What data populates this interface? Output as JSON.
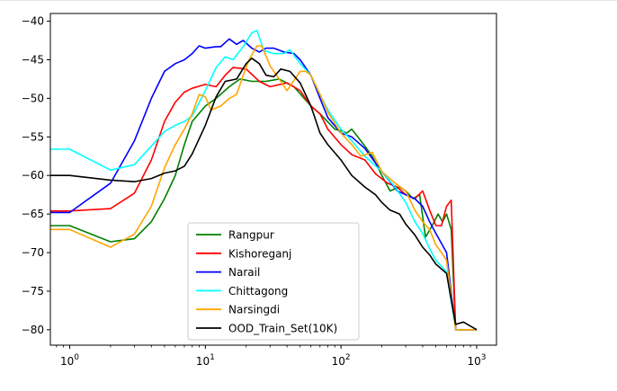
{
  "chart_data": {
    "type": "line",
    "title": "",
    "xlabel": "",
    "ylabel": "",
    "x_scale": "log",
    "xlim": [
      0.72,
      1400
    ],
    "ylim": [
      -82,
      -39
    ],
    "x_ticks": [
      {
        "value": 1,
        "base": "10",
        "exp": "0"
      },
      {
        "value": 10,
        "base": "10",
        "exp": "1"
      },
      {
        "value": 100,
        "base": "10",
        "exp": "2"
      },
      {
        "value": 1000,
        "base": "10",
        "exp": "3"
      }
    ],
    "y_ticks": [
      {
        "value": -40,
        "label": "−40"
      },
      {
        "value": -45,
        "label": "−45"
      },
      {
        "value": -50,
        "label": "−50"
      },
      {
        "value": -55,
        "label": "−55"
      },
      {
        "value": -60,
        "label": "−60"
      },
      {
        "value": -65,
        "label": "−65"
      },
      {
        "value": -70,
        "label": "−70"
      },
      {
        "value": -75,
        "label": "−75"
      },
      {
        "value": -80,
        "label": "−80"
      }
    ],
    "legend_position": "lower-center",
    "series": [
      {
        "name": "Rangpur",
        "color": "#008000",
        "points": [
          [
            0.72,
            -66.5
          ],
          [
            1,
            -66.5
          ],
          [
            2,
            -68.6
          ],
          [
            3,
            -68.2
          ],
          [
            4,
            -66
          ],
          [
            5,
            -63
          ],
          [
            6,
            -60
          ],
          [
            7,
            -56
          ],
          [
            8,
            -53
          ],
          [
            10,
            -51
          ],
          [
            12,
            -50
          ],
          [
            15,
            -48.5
          ],
          [
            18,
            -47.5
          ],
          [
            22,
            -47.8
          ],
          [
            28,
            -47.8
          ],
          [
            35,
            -47.5
          ],
          [
            45,
            -48.5
          ],
          [
            60,
            -51
          ],
          [
            70,
            -52
          ],
          [
            90,
            -54
          ],
          [
            100,
            -54.2
          ],
          [
            110,
            -54.5
          ],
          [
            120,
            -54
          ],
          [
            140,
            -55.5
          ],
          [
            170,
            -57.5
          ],
          [
            200,
            -60
          ],
          [
            230,
            -62
          ],
          [
            270,
            -61.5
          ],
          [
            300,
            -62
          ],
          [
            340,
            -63
          ],
          [
            380,
            -62.5
          ],
          [
            420,
            -68
          ],
          [
            470,
            -66.5
          ],
          [
            520,
            -65
          ],
          [
            560,
            -66
          ],
          [
            600,
            -65
          ],
          [
            650,
            -67
          ],
          [
            700,
            -80
          ],
          [
            800,
            -80
          ],
          [
            1000,
            -80
          ]
        ]
      },
      {
        "name": "Kishoreganj",
        "color": "#ff0000",
        "points": [
          [
            0.72,
            -64.6
          ],
          [
            1,
            -64.6
          ],
          [
            2,
            -64.3
          ],
          [
            3,
            -62.3
          ],
          [
            4,
            -58
          ],
          [
            5,
            -53
          ],
          [
            6,
            -50.5
          ],
          [
            7,
            -49.2
          ],
          [
            8,
            -48.7
          ],
          [
            10,
            -48.2
          ],
          [
            12,
            -48.5
          ],
          [
            14,
            -47
          ],
          [
            16,
            -46
          ],
          [
            20,
            -46.2
          ],
          [
            25,
            -47.8
          ],
          [
            30,
            -48.5
          ],
          [
            40,
            -48
          ],
          [
            50,
            -49
          ],
          [
            60,
            -51
          ],
          [
            70,
            -52
          ],
          [
            80,
            -54
          ],
          [
            100,
            -56
          ],
          [
            120,
            -57.3
          ],
          [
            150,
            -58
          ],
          [
            180,
            -59.8
          ],
          [
            220,
            -61
          ],
          [
            260,
            -61.5
          ],
          [
            300,
            -62.5
          ],
          [
            350,
            -63
          ],
          [
            400,
            -62
          ],
          [
            450,
            -64.5
          ],
          [
            500,
            -66.5
          ],
          [
            550,
            -66.5
          ],
          [
            600,
            -64
          ],
          [
            650,
            -63.2
          ],
          [
            700,
            -80
          ],
          [
            800,
            -80
          ],
          [
            1000,
            -80
          ]
        ]
      },
      {
        "name": "Narail",
        "color": "#0000ff",
        "points": [
          [
            0.72,
            -64.8
          ],
          [
            1,
            -64.8
          ],
          [
            2,
            -61
          ],
          [
            3,
            -55.5
          ],
          [
            4,
            -50
          ],
          [
            5,
            -46.5
          ],
          [
            6,
            -45.5
          ],
          [
            7,
            -45
          ],
          [
            8,
            -44.2
          ],
          [
            9,
            -43.2
          ],
          [
            10,
            -43.5
          ],
          [
            12,
            -43.3
          ],
          [
            13,
            -43.3
          ],
          [
            15,
            -42.3
          ],
          [
            17,
            -43
          ],
          [
            19,
            -42.5
          ],
          [
            22,
            -43.5
          ],
          [
            25,
            -44
          ],
          [
            28,
            -43.5
          ],
          [
            32,
            -43.5
          ],
          [
            38,
            -44
          ],
          [
            45,
            -44.2
          ],
          [
            50,
            -45
          ],
          [
            60,
            -47
          ],
          [
            70,
            -50
          ],
          [
            80,
            -52.5
          ],
          [
            100,
            -54.5
          ],
          [
            120,
            -55
          ],
          [
            150,
            -56.5
          ],
          [
            200,
            -59.5
          ],
          [
            260,
            -62
          ],
          [
            300,
            -62.5
          ],
          [
            350,
            -63
          ],
          [
            400,
            -64
          ],
          [
            450,
            -66
          ],
          [
            500,
            -67.5
          ],
          [
            600,
            -70
          ],
          [
            700,
            -80
          ],
          [
            800,
            -80
          ],
          [
            1000,
            -80
          ]
        ]
      },
      {
        "name": "Chittagong",
        "color": "#00ffff",
        "points": [
          [
            0.72,
            -56.6
          ],
          [
            1,
            -56.6
          ],
          [
            2,
            -59.3
          ],
          [
            3,
            -58.6
          ],
          [
            4,
            -56.2
          ],
          [
            5,
            -54.3
          ],
          [
            6,
            -53.5
          ],
          [
            7,
            -53
          ],
          [
            8,
            -52.3
          ],
          [
            10,
            -49
          ],
          [
            12,
            -46
          ],
          [
            14,
            -44.6
          ],
          [
            16,
            -45
          ],
          [
            19,
            -43.3
          ],
          [
            22,
            -41.5
          ],
          [
            24,
            -41.2
          ],
          [
            27,
            -43.8
          ],
          [
            32,
            -44.2
          ],
          [
            38,
            -44.2
          ],
          [
            42,
            -43.7
          ],
          [
            50,
            -45.5
          ],
          [
            60,
            -47
          ],
          [
            70,
            -49.5
          ],
          [
            80,
            -51.5
          ],
          [
            100,
            -54
          ],
          [
            120,
            -55.5
          ],
          [
            150,
            -57.5
          ],
          [
            200,
            -59.5
          ],
          [
            250,
            -61.5
          ],
          [
            300,
            -63.5
          ],
          [
            350,
            -66
          ],
          [
            400,
            -67.5
          ],
          [
            450,
            -69.5
          ],
          [
            500,
            -71
          ],
          [
            600,
            -72.5
          ],
          [
            700,
            -80
          ],
          [
            800,
            -80
          ],
          [
            1000,
            -80
          ]
        ]
      },
      {
        "name": "Narsingdi",
        "color": "#ffa500",
        "points": [
          [
            0.72,
            -67
          ],
          [
            1,
            -67
          ],
          [
            2,
            -69.3
          ],
          [
            3,
            -67.6
          ],
          [
            4,
            -64
          ],
          [
            5,
            -59
          ],
          [
            6,
            -56
          ],
          [
            7,
            -54
          ],
          [
            8,
            -52
          ],
          [
            9,
            -49.5
          ],
          [
            10,
            -49.8
          ],
          [
            11,
            -51.5
          ],
          [
            13,
            -51
          ],
          [
            15,
            -50
          ],
          [
            17,
            -49.5
          ],
          [
            19,
            -47
          ],
          [
            21,
            -45
          ],
          [
            24,
            -43.2
          ],
          [
            26,
            -43.2
          ],
          [
            28,
            -44.5
          ],
          [
            30,
            -45.8
          ],
          [
            35,
            -47.5
          ],
          [
            40,
            -49
          ],
          [
            50,
            -46.5
          ],
          [
            55,
            -46.5
          ],
          [
            60,
            -47
          ],
          [
            70,
            -49.5
          ],
          [
            80,
            -51.8
          ],
          [
            100,
            -54.5
          ],
          [
            120,
            -56
          ],
          [
            140,
            -57.5
          ],
          [
            170,
            -57
          ],
          [
            200,
            -59.5
          ],
          [
            250,
            -61
          ],
          [
            300,
            -62
          ],
          [
            350,
            -64.5
          ],
          [
            400,
            -66
          ],
          [
            450,
            -67
          ],
          [
            500,
            -69
          ],
          [
            550,
            -70
          ],
          [
            600,
            -71
          ],
          [
            700,
            -80
          ],
          [
            800,
            -80
          ],
          [
            1000,
            -80
          ]
        ]
      },
      {
        "name": "OOD_Train_Set(10K)",
        "color": "#000000",
        "points": [
          [
            0.72,
            -60
          ],
          [
            1,
            -60
          ],
          [
            2,
            -60.6
          ],
          [
            3,
            -60.8
          ],
          [
            4,
            -60.4
          ],
          [
            5,
            -59.7
          ],
          [
            6,
            -59.4
          ],
          [
            7,
            -58.8
          ],
          [
            8,
            -57.2
          ],
          [
            10,
            -53.5
          ],
          [
            12,
            -49.8
          ],
          [
            14,
            -47.8
          ],
          [
            17,
            -47.5
          ],
          [
            20,
            -45.5
          ],
          [
            22,
            -44.8
          ],
          [
            25,
            -45.5
          ],
          [
            28,
            -47
          ],
          [
            32,
            -47.2
          ],
          [
            36,
            -46.2
          ],
          [
            42,
            -46.5
          ],
          [
            50,
            -48
          ],
          [
            60,
            -51
          ],
          [
            70,
            -54.5
          ],
          [
            80,
            -56
          ],
          [
            100,
            -58
          ],
          [
            120,
            -60
          ],
          [
            150,
            -61.5
          ],
          [
            180,
            -62.5
          ],
          [
            200,
            -63.5
          ],
          [
            230,
            -64.5
          ],
          [
            270,
            -65
          ],
          [
            300,
            -66.3
          ],
          [
            350,
            -67.7
          ],
          [
            400,
            -69.3
          ],
          [
            450,
            -70.3
          ],
          [
            500,
            -71.5
          ],
          [
            600,
            -72.7
          ],
          [
            700,
            -79.3
          ],
          [
            800,
            -79
          ],
          [
            1000,
            -80
          ]
        ]
      }
    ]
  }
}
